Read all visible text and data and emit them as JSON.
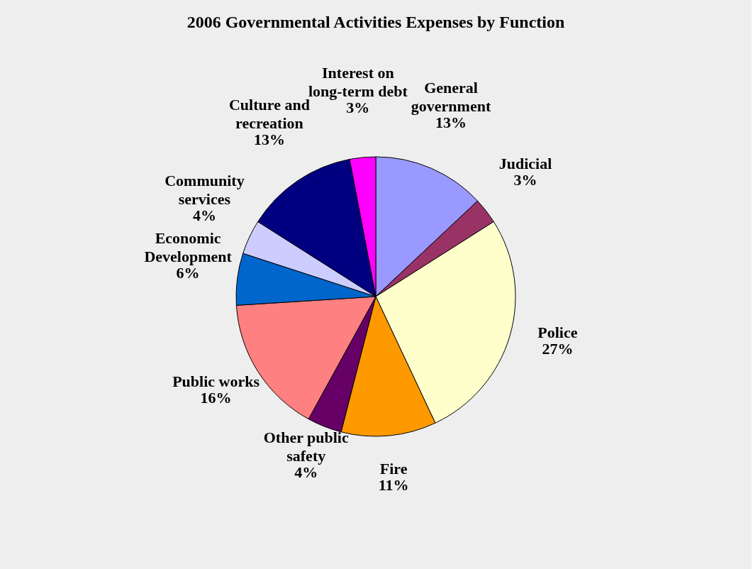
{
  "chart_data": {
    "type": "pie",
    "title": "2006 Governmental Activities Expenses by Function",
    "categories": [
      "General government",
      "Judicial",
      "Police",
      "Fire",
      "Other public safety",
      "Public works",
      "Economic Development",
      "Community services",
      "Culture and recreation",
      "Interest on long-term debt"
    ],
    "values": [
      13,
      3,
      27,
      11,
      4,
      16,
      6,
      4,
      13,
      3
    ],
    "value_labels": [
      "13%",
      "3%",
      "27%",
      "11%",
      "4%",
      "16%",
      "6%",
      "4%",
      "13%",
      "3%"
    ],
    "colors": [
      "#9999ff",
      "#993366",
      "#ffffcc",
      "#ff9900",
      "#660066",
      "#ff8080",
      "#0066cc",
      "#ccccff",
      "#000080",
      "#ff00ff"
    ],
    "legend": false
  }
}
